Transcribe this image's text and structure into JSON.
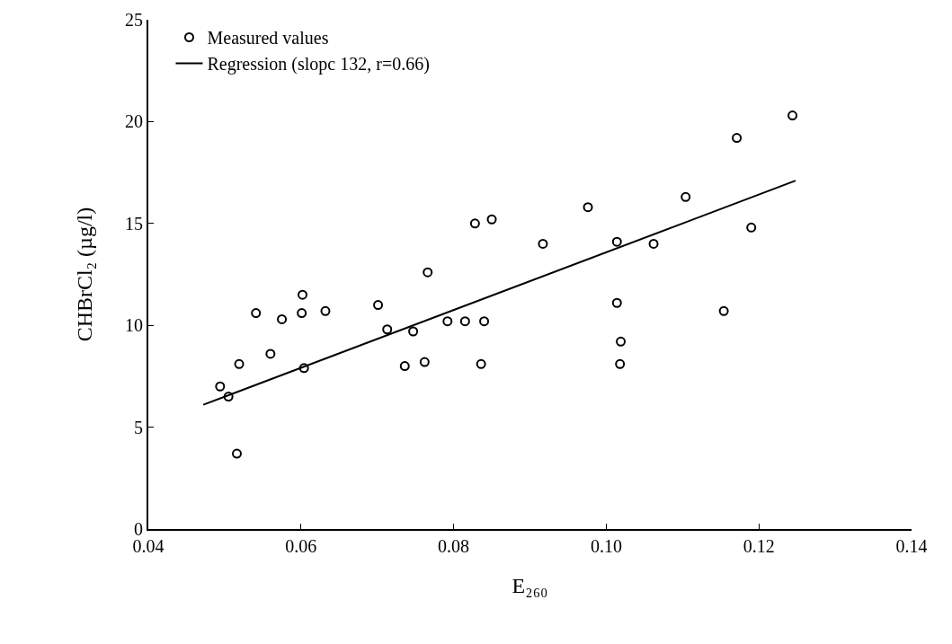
{
  "chart_data": {
    "type": "scatter",
    "xlabel": "E₂₆₀",
    "ylabel": "CHBrCl₂ (µg/l)",
    "xlim": [
      0.04,
      0.14
    ],
    "xticks": [
      {
        "value": 0.04,
        "label": "0.04"
      },
      {
        "value": 0.06,
        "label": "0.06"
      },
      {
        "value": 0.08,
        "label": "0.08"
      },
      {
        "value": 0.1,
        "label": "0.10"
      },
      {
        "value": 0.12,
        "label": "0.12"
      },
      {
        "value": 0.14,
        "label": "0.14"
      }
    ],
    "ylim": [
      0,
      25
    ],
    "yticks": [
      0,
      5,
      10,
      15,
      20,
      25
    ],
    "grid": false,
    "legend": "top left",
    "series": [
      {
        "name": "Measured values",
        "marker": "circle",
        "color": "#000000",
        "x": [
          0.0494,
          0.0505,
          0.0516,
          0.0519,
          0.0541,
          0.056,
          0.0575,
          0.0602,
          0.0601,
          0.0604,
          0.0632,
          0.0701,
          0.0713,
          0.0747,
          0.0736,
          0.0762,
          0.0766,
          0.0792,
          0.0815,
          0.084,
          0.0836,
          0.1014,
          0.1019,
          0.1018,
          0.0828,
          0.085,
          0.0917,
          0.0976,
          0.1014,
          0.1062,
          0.1104,
          0.1154,
          0.1171,
          0.119,
          0.1244
        ],
        "values": [
          7.0,
          6.5,
          3.7,
          8.1,
          10.6,
          8.6,
          10.3,
          11.5,
          10.6,
          7.9,
          10.7,
          11.0,
          9.8,
          9.7,
          8.0,
          8.2,
          12.6,
          10.2,
          10.2,
          10.2,
          8.1,
          11.1,
          9.2,
          8.1,
          15.0,
          15.2,
          14.0,
          15.8,
          14.1,
          14.0,
          16.3,
          10.7,
          19.2,
          14.8,
          20.3
        ]
      },
      {
        "name": "Regression (slopc 132, r=0.66)",
        "type": "line",
        "marker": "none",
        "line_style": "solid",
        "color": "#000000",
        "x": [
          0.0472,
          0.1248
        ],
        "values": [
          6.1,
          17.1
        ]
      }
    ]
  }
}
